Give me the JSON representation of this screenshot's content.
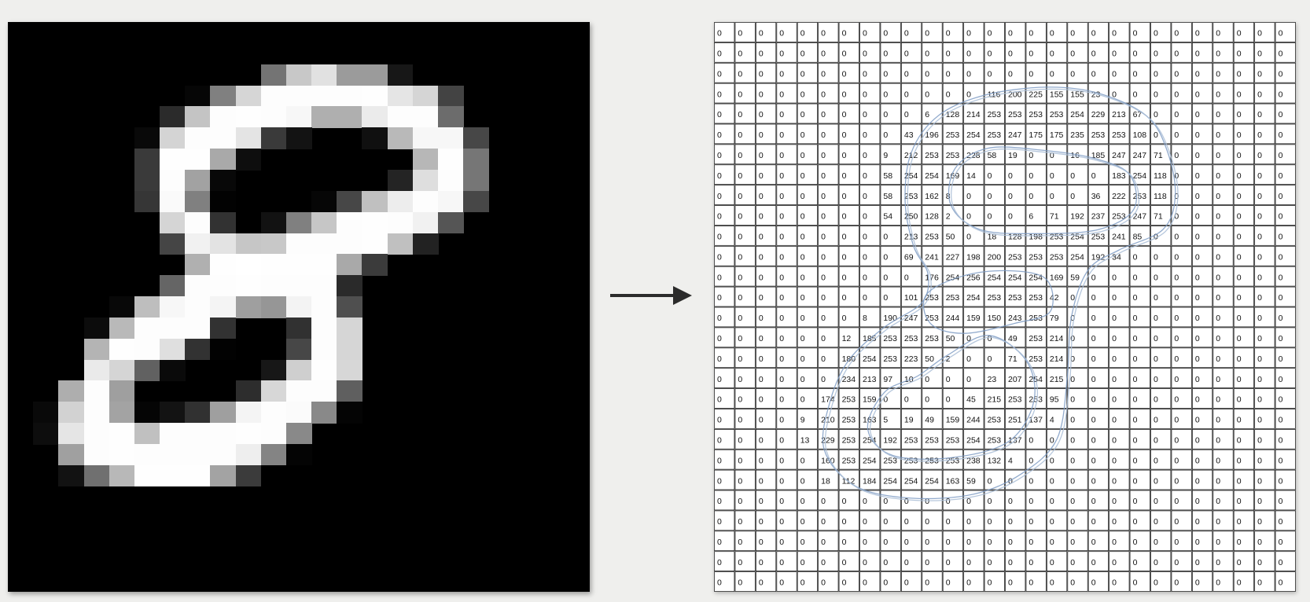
{
  "pixel_values": [
    [
      0,
      0,
      0,
      0,
      0,
      0,
      0,
      0,
      0,
      0,
      0,
      0,
      0,
      0,
      0,
      0,
      0,
      0,
      0,
      0,
      0,
      0,
      0,
      0,
      0,
      0,
      0,
      0
    ],
    [
      0,
      0,
      0,
      0,
      0,
      0,
      0,
      0,
      0,
      0,
      0,
      0,
      0,
      0,
      0,
      0,
      0,
      0,
      0,
      0,
      0,
      0,
      0,
      0,
      0,
      0,
      0,
      0
    ],
    [
      0,
      0,
      0,
      0,
      0,
      0,
      0,
      0,
      0,
      0,
      0,
      0,
      0,
      0,
      0,
      0,
      0,
      0,
      0,
      0,
      0,
      0,
      0,
      0,
      0,
      0,
      0,
      0
    ],
    [
      0,
      0,
      0,
      0,
      0,
      0,
      0,
      0,
      0,
      0,
      0,
      0,
      0,
      116,
      200,
      225,
      155,
      155,
      23,
      0,
      0,
      0,
      0,
      0,
      0,
      0,
      0,
      0
    ],
    [
      0,
      0,
      0,
      0,
      0,
      0,
      0,
      0,
      0,
      0,
      6,
      128,
      214,
      253,
      253,
      253,
      253,
      254,
      229,
      213,
      67,
      0,
      0,
      0,
      0,
      0,
      0,
      0
    ],
    [
      0,
      0,
      0,
      0,
      0,
      0,
      0,
      0,
      0,
      43,
      196,
      253,
      254,
      253,
      247,
      175,
      175,
      235,
      253,
      253,
      108,
      0,
      0,
      0,
      0,
      0,
      0,
      0
    ],
    [
      0,
      0,
      0,
      0,
      0,
      0,
      0,
      0,
      9,
      212,
      253,
      253,
      228,
      58,
      19,
      0,
      0,
      16,
      185,
      247,
      247,
      71,
      0,
      0,
      0,
      0,
      0,
      0
    ],
    [
      0,
      0,
      0,
      0,
      0,
      0,
      0,
      0,
      58,
      254,
      254,
      169,
      14,
      0,
      0,
      0,
      0,
      0,
      0,
      183,
      254,
      118,
      0,
      0,
      0,
      0,
      0,
      0
    ],
    [
      0,
      0,
      0,
      0,
      0,
      0,
      0,
      0,
      58,
      253,
      162,
      8,
      0,
      0,
      0,
      0,
      0,
      0,
      36,
      222,
      253,
      118,
      0,
      0,
      0,
      0,
      0,
      0
    ],
    [
      0,
      0,
      0,
      0,
      0,
      0,
      0,
      0,
      54,
      250,
      128,
      2,
      0,
      0,
      0,
      6,
      71,
      192,
      237,
      253,
      247,
      71,
      0,
      0,
      0,
      0,
      0,
      0
    ],
    [
      0,
      0,
      0,
      0,
      0,
      0,
      0,
      0,
      0,
      213,
      253,
      50,
      0,
      18,
      128,
      198,
      253,
      254,
      253,
      241,
      85,
      0,
      0,
      0,
      0,
      0,
      0,
      0
    ],
    [
      0,
      0,
      0,
      0,
      0,
      0,
      0,
      0,
      0,
      69,
      241,
      227,
      198,
      200,
      253,
      253,
      253,
      254,
      192,
      34,
      0,
      0,
      0,
      0,
      0,
      0,
      0,
      0
    ],
    [
      0,
      0,
      0,
      0,
      0,
      0,
      0,
      0,
      0,
      0,
      176,
      254,
      256,
      254,
      254,
      254,
      169,
      59,
      0,
      0,
      0,
      0,
      0,
      0,
      0,
      0,
      0,
      0
    ],
    [
      0,
      0,
      0,
      0,
      0,
      0,
      0,
      0,
      0,
      101,
      253,
      253,
      254,
      253,
      253,
      253,
      42,
      0,
      0,
      0,
      0,
      0,
      0,
      0,
      0,
      0,
      0,
      0
    ],
    [
      0,
      0,
      0,
      0,
      0,
      0,
      0,
      8,
      190,
      247,
      253,
      244,
      159,
      150,
      243,
      253,
      79,
      0,
      0,
      0,
      0,
      0,
      0,
      0,
      0,
      0,
      0,
      0
    ],
    [
      0,
      0,
      0,
      0,
      0,
      0,
      12,
      185,
      253,
      253,
      253,
      50,
      0,
      0,
      49,
      253,
      214,
      0,
      0,
      0,
      0,
      0,
      0,
      0,
      0,
      0,
      0,
      0
    ],
    [
      0,
      0,
      0,
      0,
      0,
      0,
      180,
      254,
      253,
      223,
      50,
      2,
      0,
      0,
      71,
      253,
      214,
      0,
      0,
      0,
      0,
      0,
      0,
      0,
      0,
      0,
      0,
      0
    ],
    [
      0,
      0,
      0,
      0,
      0,
      0,
      234,
      213,
      97,
      10,
      0,
      0,
      0,
      23,
      207,
      254,
      215,
      0,
      0,
      0,
      0,
      0,
      0,
      0,
      0,
      0,
      0,
      0
    ],
    [
      0,
      0,
      0,
      0,
      0,
      174,
      253,
      159,
      0,
      0,
      0,
      0,
      45,
      215,
      253,
      253,
      95,
      0,
      0,
      0,
      0,
      0,
      0,
      0,
      0,
      0,
      0,
      0
    ],
    [
      0,
      0,
      0,
      0,
      9,
      210,
      253,
      163,
      5,
      19,
      49,
      159,
      244,
      253,
      251,
      137,
      4,
      0,
      0,
      0,
      0,
      0,
      0,
      0,
      0,
      0,
      0,
      0
    ],
    [
      0,
      0,
      0,
      0,
      13,
      229,
      253,
      254,
      192,
      253,
      253,
      253,
      254,
      253,
      137,
      0,
      0,
      0,
      0,
      0,
      0,
      0,
      0,
      0,
      0,
      0,
      0,
      0
    ],
    [
      0,
      0,
      0,
      0,
      0,
      160,
      253,
      254,
      253,
      253,
      253,
      253,
      238,
      132,
      4,
      0,
      0,
      0,
      0,
      0,
      0,
      0,
      0,
      0,
      0,
      0,
      0,
      0
    ],
    [
      0,
      0,
      0,
      0,
      0,
      18,
      112,
      184,
      254,
      254,
      254,
      163,
      59,
      0,
      0,
      0,
      0,
      0,
      0,
      0,
      0,
      0,
      0,
      0,
      0,
      0,
      0,
      0
    ],
    [
      0,
      0,
      0,
      0,
      0,
      0,
      0,
      0,
      0,
      0,
      0,
      0,
      0,
      0,
      0,
      0,
      0,
      0,
      0,
      0,
      0,
      0,
      0,
      0,
      0,
      0,
      0,
      0
    ],
    [
      0,
      0,
      0,
      0,
      0,
      0,
      0,
      0,
      0,
      0,
      0,
      0,
      0,
      0,
      0,
      0,
      0,
      0,
      0,
      0,
      0,
      0,
      0,
      0,
      0,
      0,
      0,
      0
    ],
    [
      0,
      0,
      0,
      0,
      0,
      0,
      0,
      0,
      0,
      0,
      0,
      0,
      0,
      0,
      0,
      0,
      0,
      0,
      0,
      0,
      0,
      0,
      0,
      0,
      0,
      0,
      0,
      0
    ],
    [
      0,
      0,
      0,
      0,
      0,
      0,
      0,
      0,
      0,
      0,
      0,
      0,
      0,
      0,
      0,
      0,
      0,
      0,
      0,
      0,
      0,
      0,
      0,
      0,
      0,
      0,
      0,
      0
    ],
    [
      0,
      0,
      0,
      0,
      0,
      0,
      0,
      0,
      0,
      0,
      0,
      0,
      0,
      0,
      0,
      0,
      0,
      0,
      0,
      0,
      0,
      0,
      0,
      0,
      0,
      0,
      0,
      0
    ]
  ],
  "colors": {
    "background": "#efefed",
    "image_background": "#000000",
    "grid_line": "#222222",
    "cell_text": "#111111",
    "outline": "#7f9cc4",
    "arrow": "#2b2b2b"
  },
  "icons": {
    "arrow": "arrow-right-icon"
  }
}
